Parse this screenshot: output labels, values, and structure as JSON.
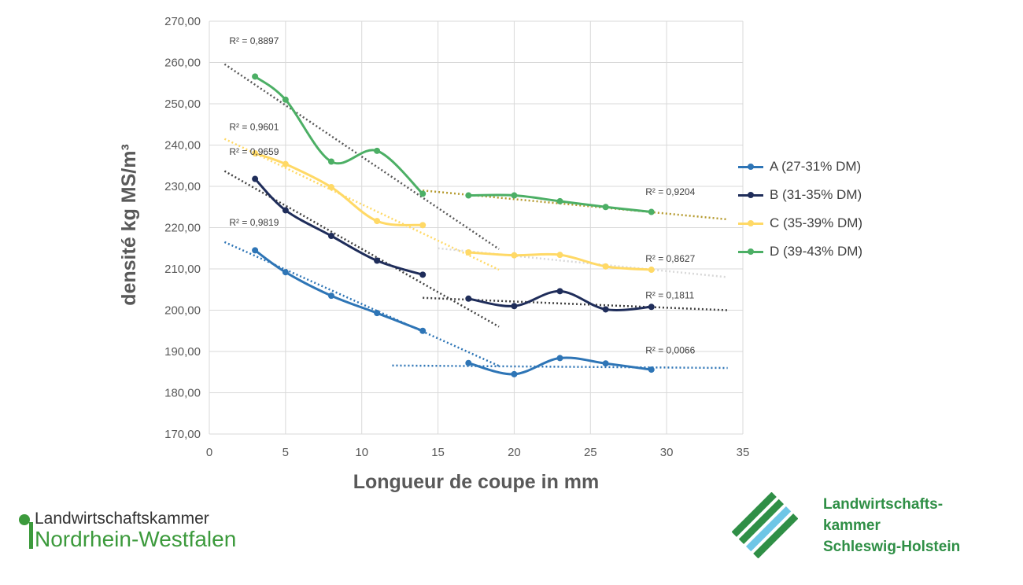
{
  "chart_data": {
    "type": "line",
    "title": "",
    "xlabel": "Longueur de coupe in mm",
    "ylabel": "densité kg MS/m³",
    "xlim": [
      0,
      35
    ],
    "ylim": [
      170,
      270
    ],
    "x_ticks": [
      "0",
      "5",
      "10",
      "15",
      "20",
      "25",
      "30",
      "35"
    ],
    "y_ticks": [
      "170,00",
      "180,00",
      "190,00",
      "200,00",
      "210,00",
      "220,00",
      "230,00",
      "240,00",
      "250,00",
      "260,00",
      "270,00"
    ],
    "grid": true,
    "legend_position": "right",
    "series": [
      {
        "name": "A (27-31% DM)",
        "color": "#2e75b6",
        "segments": [
          {
            "x": [
              3,
              5,
              8,
              11,
              14
            ],
            "y": [
              214.5,
              209.2,
              203.5,
              199.3,
              195.0
            ]
          },
          {
            "x": [
              17,
              20,
              23,
              26,
              29
            ],
            "y": [
              187.2,
              184.5,
              188.4,
              187.1,
              185.6
            ]
          }
        ]
      },
      {
        "name": "B (31-35% DM)",
        "color": "#1f2d5a",
        "segments": [
          {
            "x": [
              3,
              5,
              8,
              11,
              14
            ],
            "y": [
              231.8,
              224.2,
              218.0,
              212.0,
              208.6
            ]
          },
          {
            "x": [
              17,
              20,
              23,
              26,
              29
            ],
            "y": [
              202.8,
              201.0,
              204.6,
              200.2,
              200.8
            ]
          }
        ]
      },
      {
        "name": "C (35-39% DM)",
        "color": "#ffd966",
        "segments": [
          {
            "x": [
              3,
              5,
              8,
              11,
              14
            ],
            "y": [
              238.0,
              235.4,
              229.8,
              221.6,
              220.6
            ]
          },
          {
            "x": [
              17,
              20,
              23,
              26,
              29
            ],
            "y": [
              214.0,
              213.3,
              213.4,
              210.6,
              209.8
            ]
          }
        ]
      },
      {
        "name": "D (39-43% DM)",
        "color": "#4caf65",
        "segments": [
          {
            "x": [
              3,
              5,
              8,
              11,
              14
            ],
            "y": [
              256.6,
              251.0,
              236.0,
              238.6,
              228.2
            ]
          },
          {
            "x": [
              17,
              20,
              23,
              26,
              29
            ],
            "y": [
              227.8,
              227.8,
              226.4,
              225.0,
              223.8
            ]
          }
        ]
      }
    ],
    "trendlines": [
      {
        "color": "#2e75b6",
        "x": [
          1,
          19
        ],
        "y": [
          216.5,
          186.5
        ],
        "label": "R² = 0,9819",
        "label_at": [
          1,
          220.5
        ]
      },
      {
        "color": "#2e75b6",
        "x": [
          12,
          34
        ],
        "y": [
          186.6,
          186.0
        ],
        "label": "R² = 0,0066",
        "label_at": [
          28.3,
          189.5
        ]
      },
      {
        "color": "#404040",
        "x": [
          1,
          19
        ],
        "y": [
          233.7,
          196.0
        ],
        "label": "R² = 0,9659",
        "label_at": [
          1,
          237.6
        ]
      },
      {
        "color": "#404040",
        "x": [
          14,
          34
        ],
        "y": [
          203.0,
          200.0
        ],
        "label": "R² = 0,1811",
        "label_at": [
          28.3,
          202.9
        ]
      },
      {
        "color": "#ffd966",
        "x": [
          1,
          19
        ],
        "y": [
          241.5,
          209.8
        ],
        "label": "R² = 0,9601",
        "label_at": [
          1,
          243.6
        ]
      },
      {
        "color": "#d9d9d9",
        "x": [
          15,
          34
        ],
        "y": [
          215.0,
          208.0
        ],
        "label": "R² = 0,8627",
        "label_at": [
          28.3,
          211.7
        ]
      },
      {
        "color": "#595959",
        "x": [
          1,
          19
        ],
        "y": [
          259.6,
          214.8
        ],
        "label": "R² = 0,8897",
        "label_at": [
          1,
          264.5
        ]
      },
      {
        "color": "#b59a2e",
        "x": [
          14,
          34
        ],
        "y": [
          229.0,
          222.0
        ],
        "label": "R² = 0,9204",
        "label_at": [
          28.3,
          227.9
        ]
      }
    ]
  },
  "logos": {
    "left": {
      "line1": "Landwirtschaftskammer",
      "line2": "Nordrhein-Westfalen",
      "color": "#3c9a3c"
    },
    "right": {
      "line1": "Landwirtschafts-",
      "line2": "kammer",
      "line3": "Schleswig-Holstein",
      "color": "#2f8f46",
      "accent": "#6ec6e6"
    }
  }
}
